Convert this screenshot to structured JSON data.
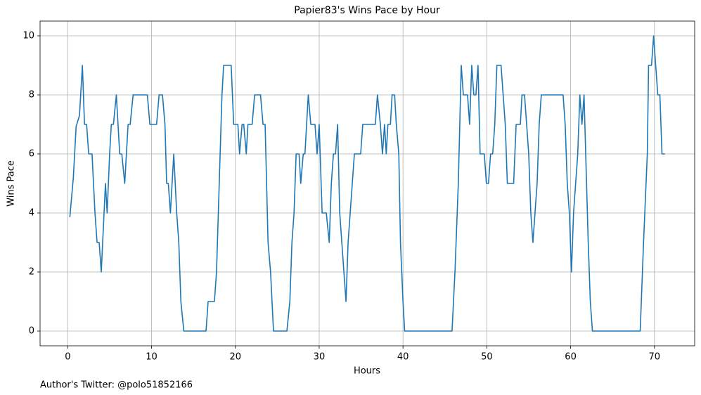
{
  "chart_data": {
    "type": "line",
    "title": "Papier83's Wins Pace by Hour",
    "xlabel": "Hours",
    "ylabel": "Wins Pace",
    "footer": "Author's Twitter: @polo51852166",
    "x": [
      0.25,
      0.67,
      1.0,
      1.4,
      1.75,
      2.0,
      2.25,
      2.5,
      2.9,
      3.25,
      3.5,
      3.75,
      4.0,
      4.5,
      4.7,
      5.0,
      5.2,
      5.45,
      5.8,
      6.2,
      6.45,
      6.8,
      7.2,
      7.45,
      7.8,
      9.5,
      9.8,
      10.6,
      10.9,
      11.3,
      11.6,
      11.8,
      12.0,
      12.25,
      12.65,
      13.0,
      13.25,
      13.5,
      13.85,
      16.5,
      16.75,
      17.5,
      17.75,
      18.4,
      18.6,
      19.5,
      19.8,
      20.3,
      20.5,
      20.8,
      21.0,
      21.3,
      21.5,
      22.0,
      22.3,
      23.0,
      23.3,
      23.55,
      23.9,
      24.2,
      24.55,
      26.15,
      26.5,
      26.75,
      27.0,
      27.25,
      27.6,
      27.8,
      28.1,
      28.3,
      28.7,
      29.0,
      29.5,
      29.75,
      30.0,
      30.35,
      30.85,
      31.2,
      31.45,
      31.7,
      31.95,
      32.2,
      32.45,
      32.7,
      33.2,
      33.45,
      33.95,
      34.2,
      34.95,
      35.2,
      36.7,
      36.95,
      37.3,
      37.55,
      37.8,
      38.0,
      38.2,
      38.5,
      38.7,
      39.0,
      39.2,
      39.5,
      39.7,
      40.0,
      40.2,
      45.85,
      46.2,
      46.6,
      46.95,
      47.2,
      47.7,
      47.95,
      48.2,
      48.45,
      48.7,
      48.95,
      49.2,
      49.7,
      49.95,
      50.2,
      50.45,
      50.7,
      50.95,
      51.2,
      51.7,
      52.2,
      52.45,
      53.2,
      53.5,
      54.0,
      54.2,
      54.5,
      55.0,
      55.25,
      55.5,
      56.0,
      56.25,
      56.5,
      59.1,
      59.35,
      59.6,
      59.85,
      60.1,
      60.35,
      60.85,
      61.1,
      61.35,
      61.6,
      62.1,
      62.35,
      62.6,
      68.3,
      68.7,
      69.15,
      69.3,
      69.65,
      69.9,
      70.4,
      70.65,
      70.9,
      71.25
    ],
    "series": [
      {
        "name": "Wins Pace",
        "color": "#1f77b4",
        "values": [
          3.86,
          5.2,
          6.93,
          7.3,
          9,
          7,
          7,
          6,
          6,
          4,
          3,
          3,
          2,
          5,
          4,
          6,
          7,
          7,
          8,
          6,
          6,
          5,
          7,
          7,
          8,
          8,
          7,
          7,
          8,
          8,
          7,
          5,
          5,
          4,
          6,
          4,
          3,
          1,
          0,
          0,
          1,
          1,
          2,
          8,
          9,
          9,
          7,
          7,
          6,
          7,
          7,
          6,
          7,
          7,
          8,
          8,
          7,
          7,
          3,
          2,
          0,
          0,
          1,
          3,
          4,
          6,
          6,
          5,
          6,
          6,
          8,
          7,
          7,
          6,
          7,
          4,
          4,
          3,
          5,
          6,
          6,
          7,
          4,
          3,
          1,
          3,
          5,
          6,
          6,
          7,
          7,
          8,
          7,
          6,
          7,
          6,
          7,
          7,
          8,
          8,
          7,
          6,
          3,
          1,
          0,
          0,
          2,
          5,
          9,
          8,
          8,
          7,
          9,
          8,
          8,
          9,
          6,
          6,
          5,
          5,
          6,
          6,
          7,
          9,
          9,
          7,
          5,
          5,
          7,
          7,
          8,
          8,
          6,
          4,
          3,
          5,
          7,
          8,
          8,
          7,
          5,
          4,
          2,
          4,
          6,
          8,
          7,
          8,
          3,
          1,
          0,
          0,
          3,
          6,
          9,
          9,
          10,
          8,
          8,
          6,
          6
        ]
      }
    ],
    "xlim": [
      -3.3,
      74.8
    ],
    "ylim": [
      -0.5,
      10.5
    ],
    "xticks": [
      0,
      10,
      20,
      30,
      40,
      50,
      60,
      70
    ],
    "yticks": [
      0,
      2,
      4,
      6,
      8,
      10
    ],
    "grid": true
  }
}
